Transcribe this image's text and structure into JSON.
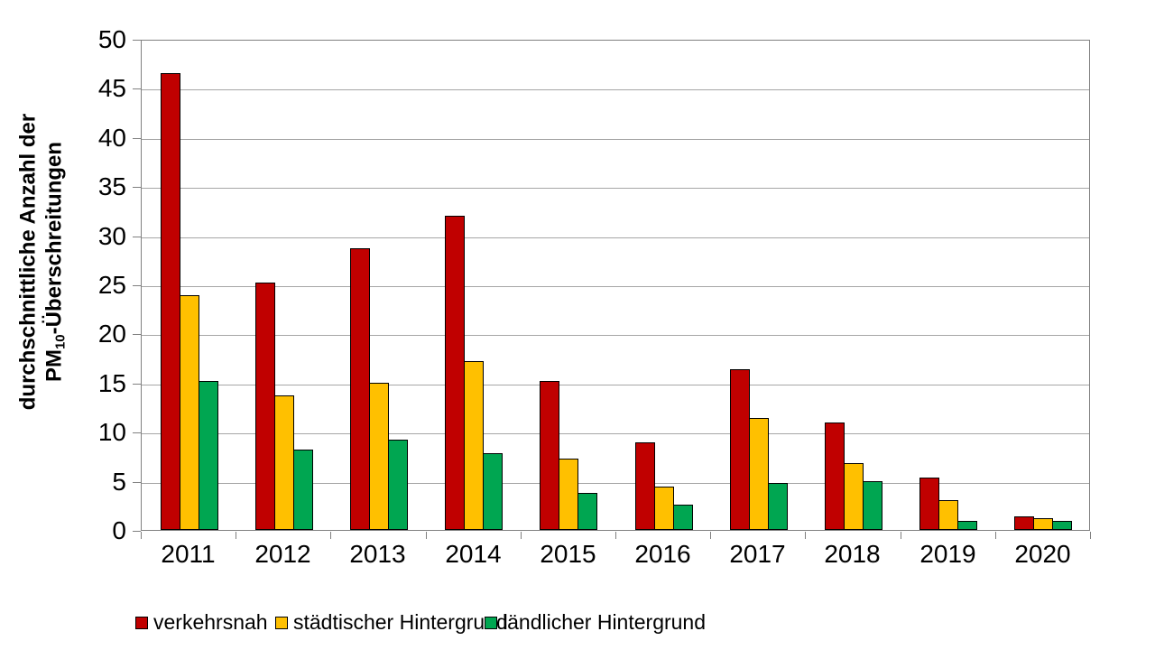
{
  "chart_data": {
    "type": "bar",
    "title": "",
    "ylabel_line1": "durchschnittliche Anzahl der",
    "ylabel_line2_prefix": "PM",
    "ylabel_line2_sub": "10",
    "ylabel_line2_suffix": "-Überschreitungen",
    "categories": [
      "2011",
      "2012",
      "2013",
      "2014",
      "2015",
      "2016",
      "2017",
      "2018",
      "2019",
      "2020"
    ],
    "series": [
      {
        "name": "verkehrsnah",
        "color": "#C00000",
        "values": [
          46.5,
          25.2,
          28.7,
          32.0,
          15.2,
          8.9,
          16.4,
          10.9,
          5.3,
          1.4
        ]
      },
      {
        "name": "städtischer Hintergrund",
        "color": "#FFC000",
        "values": [
          23.9,
          13.7,
          15.0,
          17.2,
          7.3,
          4.4,
          11.4,
          6.8,
          3.0,
          1.2
        ]
      },
      {
        "name": "ländlicher Hintergrund",
        "color": "#00A651",
        "values": [
          15.2,
          8.2,
          9.2,
          7.8,
          3.8,
          2.6,
          4.8,
          5.0,
          0.9,
          0.9
        ]
      }
    ],
    "ylim": [
      0,
      50
    ],
    "ytick_step": 5,
    "grid": true,
    "legend_position": "bottom"
  },
  "colors": {
    "axis": "#808080",
    "gridline": "#A6A6A6",
    "bar_border": "#000000",
    "background": "#FFFFFF",
    "text": "#000000"
  },
  "legend_x_positions": [
    150,
    305,
    537
  ]
}
